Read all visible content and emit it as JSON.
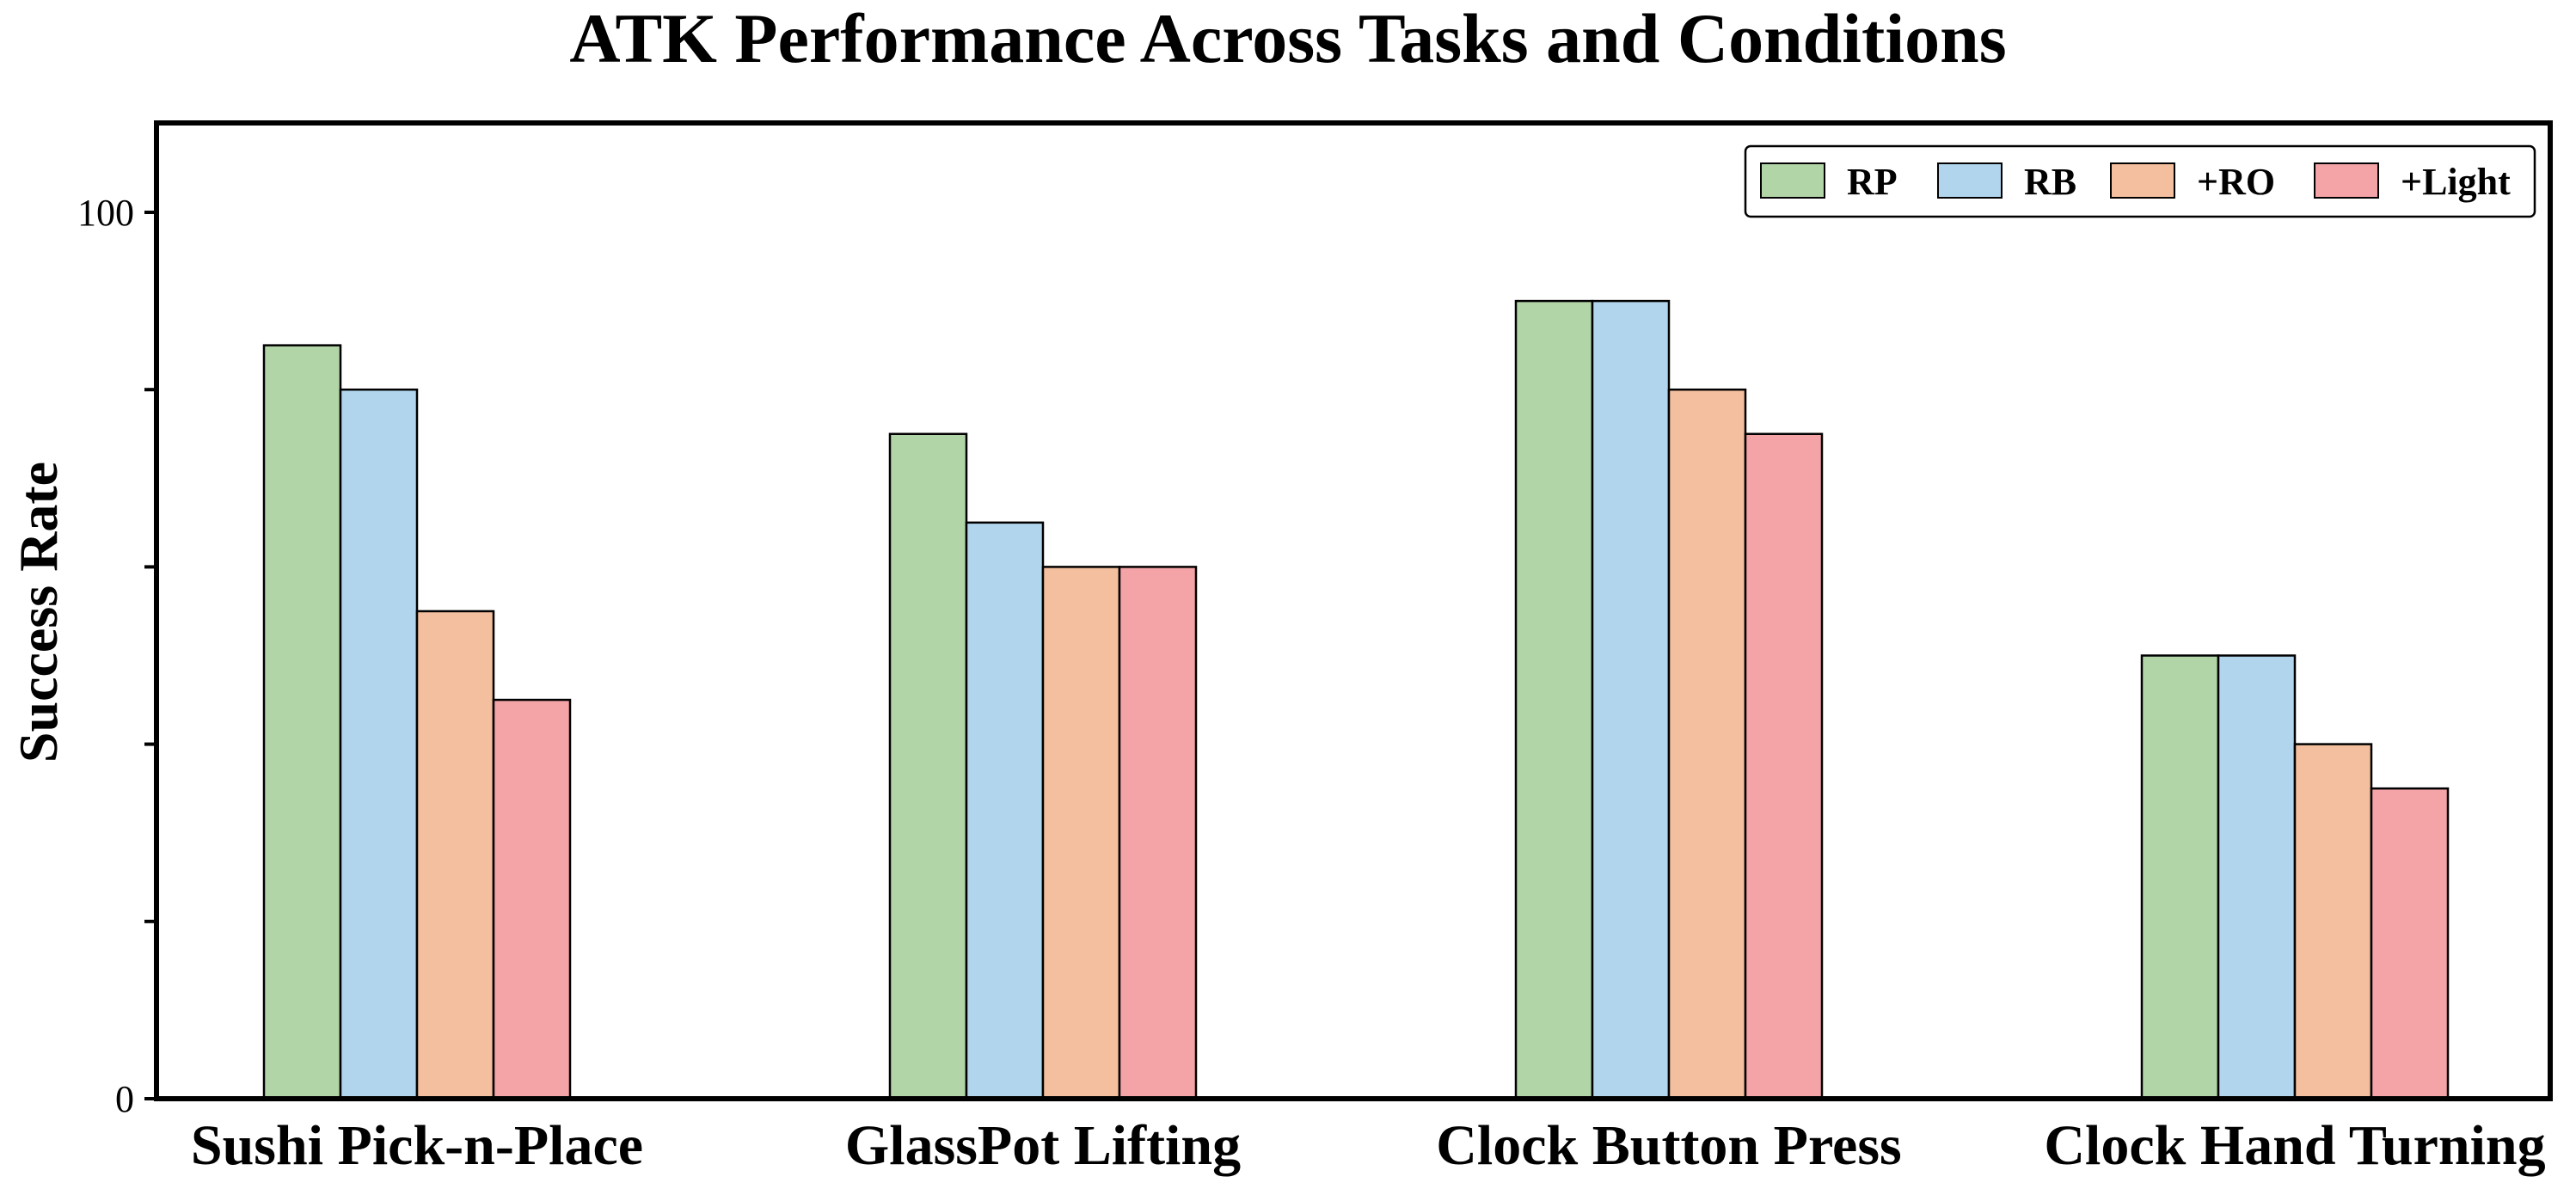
{
  "chart_data": {
    "type": "bar",
    "title": "ATK Performance Across Tasks and Conditions",
    "ylabel": "Success Rate",
    "xlabel": "",
    "ylim": [
      0,
      100
    ],
    "yticks": [
      0,
      100
    ],
    "categories": [
      "Sushi Pick-n-Place",
      "GlassPot Lifting",
      "Clock Button Press",
      "Clock Hand Turning"
    ],
    "series": [
      {
        "name": "RP",
        "color": "#b1d5a7",
        "values": [
          85,
          75,
          90,
          50
        ]
      },
      {
        "name": "RB",
        "color": "#b1d5ec",
        "values": [
          80,
          65,
          90,
          50
        ]
      },
      {
        "name": "+RO",
        "color": "#f3bf9e",
        "values": [
          55,
          60,
          80,
          40
        ]
      },
      {
        "name": "+Light",
        "color": "#f4a3a6",
        "values": [
          45,
          60,
          75,
          35
        ]
      }
    ],
    "legend_position": "top-right",
    "grid": false
  }
}
